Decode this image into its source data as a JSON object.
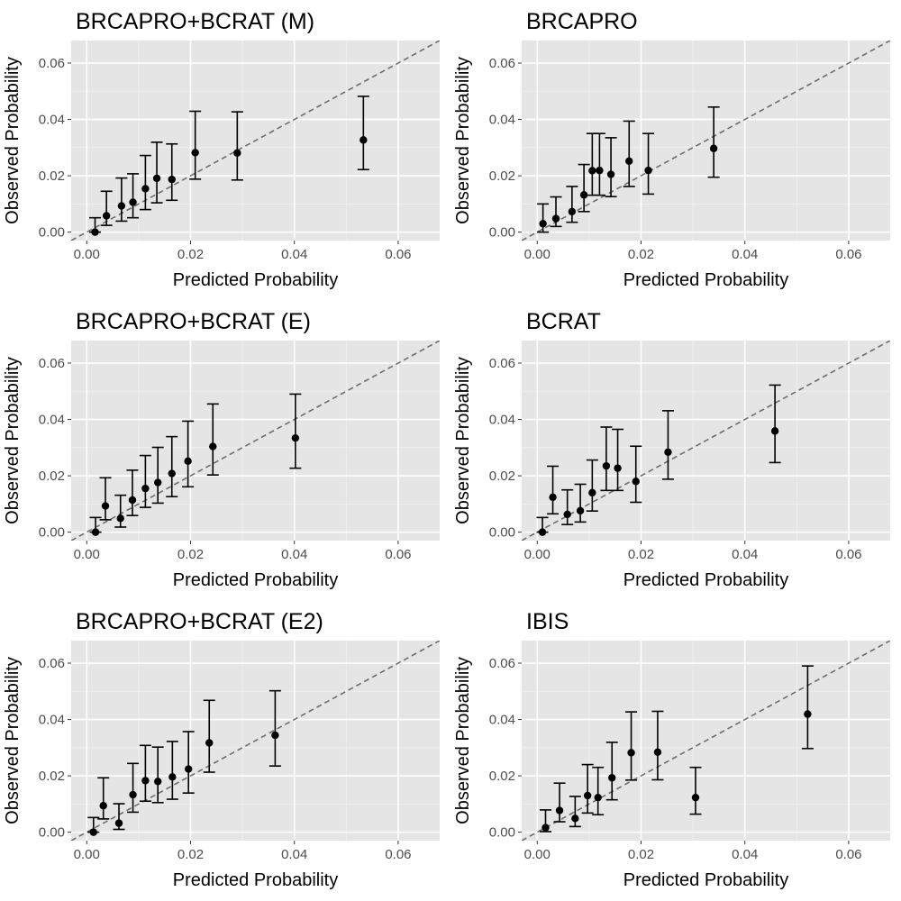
{
  "figure": {
    "x_axis_label": "Predicted Probability",
    "y_axis_label": "Observed Probability",
    "colors": {
      "panel_background": "#e5e5e5",
      "grid_major": "#ffffff",
      "grid_minor": "#f2f2f2",
      "points": "#000000",
      "error_bars": "#000000",
      "diagonal": "#6e6e6e",
      "tick_text": "#4d4d4d"
    }
  },
  "chart_data": [
    {
      "type": "scatter",
      "title": "BRCAPRO+BCRAT (M)",
      "xlabel": "Predicted Probability",
      "ylabel": "Observed Probability",
      "xlim": [
        -0.003,
        0.068
      ],
      "ylim": [
        -0.003,
        0.068
      ],
      "x_ticks": [
        "0.00",
        "0.02",
        "0.04",
        "0.06"
      ],
      "y_ticks": [
        "0.00",
        "0.02",
        "0.04",
        "0.06"
      ],
      "reference_line": "y = x (dashed)",
      "points": [
        {
          "x": 0.0016,
          "y": 0.0,
          "lo": 0.0,
          "hi": 0.0051
        },
        {
          "x": 0.0038,
          "y": 0.0058,
          "lo": 0.0024,
          "hi": 0.0145
        },
        {
          "x": 0.0067,
          "y": 0.0093,
          "lo": 0.0039,
          "hi": 0.0192
        },
        {
          "x": 0.0089,
          "y": 0.0106,
          "lo": 0.0051,
          "hi": 0.0207
        },
        {
          "x": 0.0113,
          "y": 0.0154,
          "lo": 0.008,
          "hi": 0.0272
        },
        {
          "x": 0.0135,
          "y": 0.0191,
          "lo": 0.0104,
          "hi": 0.0319
        },
        {
          "x": 0.0164,
          "y": 0.0187,
          "lo": 0.0113,
          "hi": 0.0313
        },
        {
          "x": 0.0209,
          "y": 0.0282,
          "lo": 0.0188,
          "hi": 0.0429
        },
        {
          "x": 0.029,
          "y": 0.0281,
          "lo": 0.0185,
          "hi": 0.0427
        },
        {
          "x": 0.0533,
          "y": 0.0327,
          "lo": 0.0222,
          "hi": 0.0482
        }
      ]
    },
    {
      "type": "scatter",
      "title": "BRCAPRO",
      "xlabel": "Predicted Probability",
      "ylabel": "Observed Probability",
      "xlim": [
        -0.003,
        0.068
      ],
      "ylim": [
        -0.003,
        0.068
      ],
      "x_ticks": [
        "0.00",
        "0.02",
        "0.04",
        "0.06"
      ],
      "y_ticks": [
        "0.00",
        "0.02",
        "0.04",
        "0.06"
      ],
      "reference_line": "y = x (dashed)",
      "points": [
        {
          "x": 0.0011,
          "y": 0.003,
          "lo": 0.0,
          "hi": 0.01
        },
        {
          "x": 0.0036,
          "y": 0.0048,
          "lo": 0.002,
          "hi": 0.0125
        },
        {
          "x": 0.0067,
          "y": 0.0073,
          "lo": 0.0035,
          "hi": 0.0162
        },
        {
          "x": 0.009,
          "y": 0.0132,
          "lo": 0.0073,
          "hi": 0.024
        },
        {
          "x": 0.0106,
          "y": 0.0218,
          "lo": 0.0131,
          "hi": 0.035
        },
        {
          "x": 0.012,
          "y": 0.0219,
          "lo": 0.0131,
          "hi": 0.035
        },
        {
          "x": 0.0142,
          "y": 0.0205,
          "lo": 0.0126,
          "hi": 0.0335
        },
        {
          "x": 0.0177,
          "y": 0.0252,
          "lo": 0.0162,
          "hi": 0.0394
        },
        {
          "x": 0.0214,
          "y": 0.0219,
          "lo": 0.0135,
          "hi": 0.035
        },
        {
          "x": 0.034,
          "y": 0.0297,
          "lo": 0.0195,
          "hi": 0.0444
        }
      ]
    },
    {
      "type": "scatter",
      "title": "BRCAPRO+BCRAT (E)",
      "xlabel": "Predicted Probability",
      "ylabel": "Observed Probability",
      "xlim": [
        -0.003,
        0.068
      ],
      "ylim": [
        -0.003,
        0.068
      ],
      "x_ticks": [
        "0.00",
        "0.02",
        "0.04",
        "0.06"
      ],
      "y_ticks": [
        "0.00",
        "0.02",
        "0.04",
        "0.06"
      ],
      "reference_line": "y = x (dashed)",
      "points": [
        {
          "x": 0.0017,
          "y": 0.0,
          "lo": 0.0,
          "hi": 0.0052
        },
        {
          "x": 0.0036,
          "y": 0.0093,
          "lo": 0.0044,
          "hi": 0.0193
        },
        {
          "x": 0.0065,
          "y": 0.0049,
          "lo": 0.0018,
          "hi": 0.0131
        },
        {
          "x": 0.0088,
          "y": 0.0114,
          "lo": 0.0059,
          "hi": 0.022
        },
        {
          "x": 0.0113,
          "y": 0.0155,
          "lo": 0.0088,
          "hi": 0.0272
        },
        {
          "x": 0.0137,
          "y": 0.0176,
          "lo": 0.0103,
          "hi": 0.0301
        },
        {
          "x": 0.0164,
          "y": 0.0208,
          "lo": 0.0126,
          "hi": 0.0339
        },
        {
          "x": 0.0195,
          "y": 0.0252,
          "lo": 0.0161,
          "hi": 0.0394
        },
        {
          "x": 0.0243,
          "y": 0.0304,
          "lo": 0.0203,
          "hi": 0.0455
        },
        {
          "x": 0.0402,
          "y": 0.0334,
          "lo": 0.0227,
          "hi": 0.049
        }
      ]
    },
    {
      "type": "scatter",
      "title": "BCRAT",
      "xlabel": "Predicted Probability",
      "ylabel": "Observed Probability",
      "xlim": [
        -0.003,
        0.068
      ],
      "ylim": [
        -0.003,
        0.068
      ],
      "x_ticks": [
        "0.00",
        "0.02",
        "0.04",
        "0.06"
      ],
      "y_ticks": [
        "0.00",
        "0.02",
        "0.04",
        "0.06"
      ],
      "reference_line": "y = x (dashed)",
      "points": [
        {
          "x": 0.001,
          "y": 0.0,
          "lo": 0.0,
          "hi": 0.0052
        },
        {
          "x": 0.003,
          "y": 0.0124,
          "lo": 0.0065,
          "hi": 0.0234
        },
        {
          "x": 0.0058,
          "y": 0.0063,
          "lo": 0.0027,
          "hi": 0.015
        },
        {
          "x": 0.0083,
          "y": 0.0076,
          "lo": 0.0036,
          "hi": 0.017
        },
        {
          "x": 0.0106,
          "y": 0.014,
          "lo": 0.0075,
          "hi": 0.0256
        },
        {
          "x": 0.0133,
          "y": 0.0235,
          "lo": 0.0148,
          "hi": 0.0373
        },
        {
          "x": 0.0155,
          "y": 0.0227,
          "lo": 0.0148,
          "hi": 0.0365
        },
        {
          "x": 0.019,
          "y": 0.018,
          "lo": 0.0106,
          "hi": 0.0305
        },
        {
          "x": 0.0252,
          "y": 0.0284,
          "lo": 0.0188,
          "hi": 0.0431
        },
        {
          "x": 0.0458,
          "y": 0.0359,
          "lo": 0.0247,
          "hi": 0.0522
        }
      ]
    },
    {
      "type": "scatter",
      "title": "BRCAPRO+BCRAT (E2)",
      "xlabel": "Predicted Probability",
      "ylabel": "Observed Probability",
      "xlim": [
        -0.003,
        0.068
      ],
      "ylim": [
        -0.003,
        0.068
      ],
      "x_ticks": [
        "0.00",
        "0.02",
        "0.04",
        "0.06"
      ],
      "y_ticks": [
        "0.00",
        "0.02",
        "0.04",
        "0.06"
      ],
      "reference_line": "y = x (dashed)",
      "points": [
        {
          "x": 0.0013,
          "y": 0.0,
          "lo": 0.0,
          "hi": 0.0052
        },
        {
          "x": 0.0032,
          "y": 0.0094,
          "lo": 0.0047,
          "hi": 0.0193
        },
        {
          "x": 0.0062,
          "y": 0.0032,
          "lo": 0.001,
          "hi": 0.0101
        },
        {
          "x": 0.0089,
          "y": 0.0133,
          "lo": 0.0071,
          "hi": 0.0244
        },
        {
          "x": 0.0113,
          "y": 0.0183,
          "lo": 0.011,
          "hi": 0.0308
        },
        {
          "x": 0.0137,
          "y": 0.018,
          "lo": 0.0105,
          "hi": 0.0302
        },
        {
          "x": 0.0165,
          "y": 0.0196,
          "lo": 0.0117,
          "hi": 0.0322
        },
        {
          "x": 0.0196,
          "y": 0.0224,
          "lo": 0.0139,
          "hi": 0.0357
        },
        {
          "x": 0.0236,
          "y": 0.0317,
          "lo": 0.0213,
          "hi": 0.0468
        },
        {
          "x": 0.0363,
          "y": 0.0344,
          "lo": 0.0235,
          "hi": 0.0502
        }
      ]
    },
    {
      "type": "scatter",
      "title": "IBIS",
      "xlabel": "Predicted Probability",
      "ylabel": "Observed Probability",
      "xlim": [
        -0.003,
        0.068
      ],
      "ylim": [
        -0.003,
        0.068
      ],
      "x_ticks": [
        "0.00",
        "0.02",
        "0.04",
        "0.06"
      ],
      "y_ticks": [
        "0.00",
        "0.02",
        "0.04",
        "0.06"
      ],
      "reference_line": "y = x (dashed)",
      "points": [
        {
          "x": 0.0016,
          "y": 0.0016,
          "lo": 0.0002,
          "hi": 0.0079
        },
        {
          "x": 0.0043,
          "y": 0.0077,
          "lo": 0.0037,
          "hi": 0.0174
        },
        {
          "x": 0.0073,
          "y": 0.0049,
          "lo": 0.002,
          "hi": 0.0127
        },
        {
          "x": 0.0097,
          "y": 0.013,
          "lo": 0.0068,
          "hi": 0.024
        },
        {
          "x": 0.0117,
          "y": 0.0123,
          "lo": 0.0062,
          "hi": 0.023
        },
        {
          "x": 0.0144,
          "y": 0.0193,
          "lo": 0.0115,
          "hi": 0.0319
        },
        {
          "x": 0.0181,
          "y": 0.0282,
          "lo": 0.0185,
          "hi": 0.0427
        },
        {
          "x": 0.0232,
          "y": 0.0284,
          "lo": 0.0186,
          "hi": 0.0429
        },
        {
          "x": 0.0305,
          "y": 0.0123,
          "lo": 0.0064,
          "hi": 0.023
        },
        {
          "x": 0.0521,
          "y": 0.0419,
          "lo": 0.0297,
          "hi": 0.059
        }
      ]
    }
  ]
}
